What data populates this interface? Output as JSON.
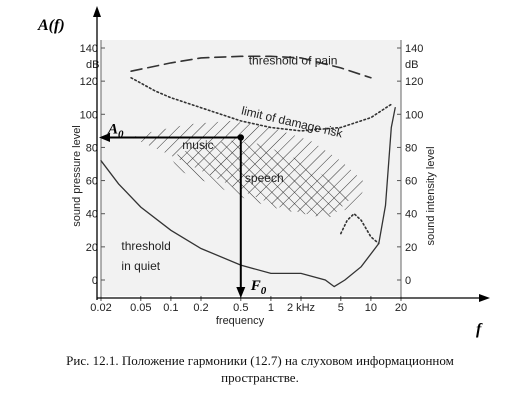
{
  "chart_data": {
    "type": "line",
    "title": "",
    "x_axis": {
      "label": "frequency",
      "unit": "kHz",
      "scale": "log",
      "range": [
        0.02,
        20
      ],
      "ticks": [
        {
          "v": 0.02,
          "t": "0.02"
        },
        {
          "v": 0.05,
          "t": "0.05"
        },
        {
          "v": 0.1,
          "t": "0.1"
        },
        {
          "v": 0.2,
          "t": "0.2"
        },
        {
          "v": 0.5,
          "t": "0.5"
        },
        {
          "v": 1,
          "t": "1"
        },
        {
          "v": 2,
          "t": "2 kHz"
        },
        {
          "v": 5,
          "t": "5"
        },
        {
          "v": 10,
          "t": "10"
        },
        {
          "v": 20,
          "t": "20"
        }
      ]
    },
    "y_left": {
      "label": "sound pressure level",
      "unit": "dB",
      "range": [
        0,
        140
      ],
      "ticks": [
        0,
        20,
        40,
        60,
        80,
        100,
        120,
        140
      ]
    },
    "y_right": {
      "label": "sound intensity level",
      "unit": "dB",
      "range": [
        0,
        140
      ],
      "ticks": [
        0,
        20,
        40,
        60,
        80,
        100,
        120,
        140
      ]
    },
    "grid": false,
    "series": [
      {
        "name": "threshold of pain",
        "style": "dashed",
        "x": [
          0.04,
          0.1,
          0.2,
          0.5,
          1,
          2,
          5,
          10
        ],
        "y": [
          126,
          131,
          134,
          135,
          135,
          134,
          128,
          122
        ]
      },
      {
        "name": "limit of damage risk",
        "style": "dotted",
        "x": [
          0.04,
          0.07,
          0.1,
          0.2,
          0.5,
          1,
          2,
          5,
          10,
          16
        ],
        "y": [
          122,
          114,
          110,
          104,
          96,
          92,
          90,
          92,
          98,
          106
        ]
      },
      {
        "name": "threshold in quiet",
        "style": "solid",
        "x": [
          0.02,
          0.03,
          0.05,
          0.1,
          0.2,
          0.5,
          1,
          2,
          3.5,
          4.3,
          5.5,
          8,
          12,
          14,
          16,
          17.5
        ],
        "y": [
          72,
          58,
          44,
          30,
          19,
          9,
          4,
          4,
          0,
          -4,
          0,
          8,
          22,
          45,
          92,
          104
        ]
      },
      {
        "name": "",
        "style": "dotted",
        "x": [
          5,
          5.8,
          6.8,
          8,
          10,
          12
        ],
        "y": [
          28,
          36,
          40,
          36,
          26,
          22
        ]
      }
    ],
    "regions": [
      {
        "name": "music",
        "x": [
          0.04,
          0.07,
          0.15,
          0.4,
          1,
          2.5,
          5,
          9,
          7,
          3,
          1.2,
          0.5,
          0.2,
          0.08
        ],
        "y": [
          86,
          90,
          94,
          96,
          92,
          84,
          72,
          58,
          44,
          38,
          44,
          54,
          66,
          78
        ]
      },
      {
        "name": "speech",
        "x": [
          0.1,
          0.2,
          0.4,
          0.8,
          2,
          4,
          6,
          4,
          2,
          1,
          0.5,
          0.25,
          0.12
        ],
        "y": [
          74,
          82,
          84,
          82,
          72,
          60,
          48,
          38,
          40,
          44,
          50,
          58,
          66
        ]
      }
    ],
    "marker": {
      "x": 0.5,
      "y": 86,
      "x_label": "F",
      "x_sub": "0",
      "y_label": "A",
      "y_sub": "0"
    },
    "axis_symbols": {
      "y": "A(f)",
      "x": "f"
    },
    "annotations": [
      {
        "text": "threshold of pain",
        "x": 0.6,
        "y": 130
      },
      {
        "text": "limit of damage risk",
        "x": 0.5,
        "y": 100
      },
      {
        "text": "music",
        "x": 0.13,
        "y": 79
      },
      {
        "text": "speech",
        "x": 0.55,
        "y": 59
      },
      {
        "text": "threshold",
        "x": 0.032,
        "y": 18
      },
      {
        "text": "in quiet",
        "x": 0.032,
        "y": 6
      }
    ]
  },
  "caption": {
    "line1": "Рис. 12.1. Положение гармоники (12.7) на слуховом информационном",
    "line2": "пространстве."
  }
}
